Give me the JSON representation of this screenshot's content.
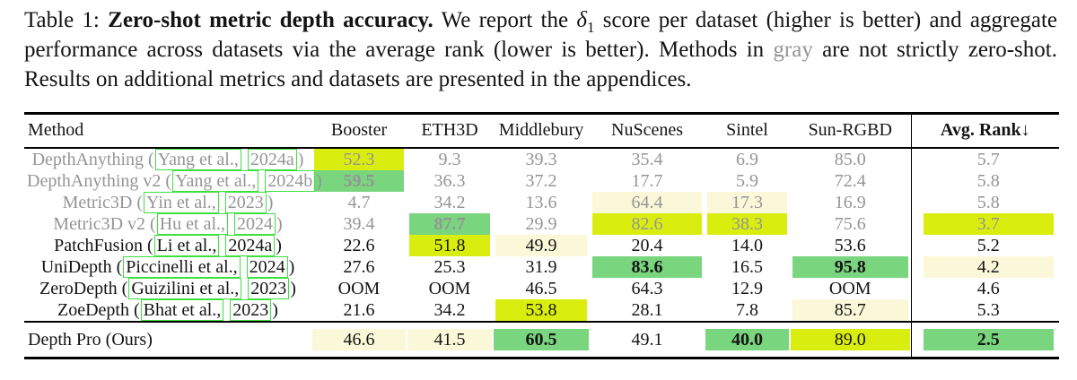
{
  "caption": {
    "prefix": "Table 1: ",
    "bold": "Zero-shot metric depth accuracy.",
    "after_bold": " We report the ",
    "delta": "δ",
    "delta_sub": "1",
    "mid": " score per dataset (higher is better) and aggregate performance across datasets via the average rank (lower is better). Methods in ",
    "gray_word": "gray",
    "tail": " are not strictly zero-shot. Results on additional metrics and datasets are presented in the appendices."
  },
  "colors": {
    "best": "#79d57e",
    "second": "#d9ee0f",
    "third": "#faf8d8",
    "link_box": "#3ee03e",
    "gray_text": "#959595"
  },
  "table": {
    "columns": [
      "Method",
      "Booster",
      "ETH3D",
      "Middlebury",
      "NuScenes",
      "Sintel",
      "Sun-RGBD",
      "Avg. Rank↓"
    ],
    "rows": [
      {
        "method": "DepthAnything",
        "cite_author": "Yang et al.,",
        "cite_year": "2024a",
        "gray": true,
        "cells": [
          {
            "v": "52.3",
            "hl": "second"
          },
          {
            "v": "9.3"
          },
          {
            "v": "39.3"
          },
          {
            "v": "35.4"
          },
          {
            "v": "6.9"
          },
          {
            "v": "85.0"
          },
          {
            "v": "5.7"
          }
        ]
      },
      {
        "method": "DepthAnything v2",
        "cite_author": "Yang et al.,",
        "cite_year": "2024b",
        "gray": true,
        "cells": [
          {
            "v": "59.5",
            "hl": "best",
            "b": true
          },
          {
            "v": "36.3"
          },
          {
            "v": "37.2"
          },
          {
            "v": "17.7"
          },
          {
            "v": "5.9"
          },
          {
            "v": "72.4"
          },
          {
            "v": "5.8"
          }
        ]
      },
      {
        "method": "Metric3D",
        "cite_author": "Yin et al.,",
        "cite_year": "2023",
        "gray": true,
        "cells": [
          {
            "v": "4.7"
          },
          {
            "v": "34.2"
          },
          {
            "v": "13.6"
          },
          {
            "v": "64.4",
            "hl": "third"
          },
          {
            "v": "17.3",
            "hl": "third"
          },
          {
            "v": "16.9"
          },
          {
            "v": "5.8"
          }
        ]
      },
      {
        "method": "Metric3D v2",
        "cite_author": "Hu et al.,",
        "cite_year": "2024",
        "gray": true,
        "cells": [
          {
            "v": "39.4"
          },
          {
            "v": "87.7",
            "hl": "best",
            "b": true
          },
          {
            "v": "29.9"
          },
          {
            "v": "82.6",
            "hl": "second"
          },
          {
            "v": "38.3",
            "hl": "second"
          },
          {
            "v": "75.6"
          },
          {
            "v": "3.7",
            "hl": "second"
          }
        ]
      },
      {
        "method": "PatchFusion",
        "cite_author": "Li et al.,",
        "cite_year": "2024a",
        "gray": false,
        "cells": [
          {
            "v": "22.6"
          },
          {
            "v": "51.8",
            "hl": "second"
          },
          {
            "v": "49.9",
            "hl": "third"
          },
          {
            "v": "20.4"
          },
          {
            "v": "14.0"
          },
          {
            "v": "53.6"
          },
          {
            "v": "5.2"
          }
        ]
      },
      {
        "method": "UniDepth",
        "cite_author": "Piccinelli et al.,",
        "cite_year": "2024",
        "gray": false,
        "cells": [
          {
            "v": "27.6"
          },
          {
            "v": "25.3"
          },
          {
            "v": "31.9"
          },
          {
            "v": "83.6",
            "hl": "best",
            "b": true
          },
          {
            "v": "16.5"
          },
          {
            "v": "95.8",
            "hl": "best",
            "b": true
          },
          {
            "v": "4.2",
            "hl": "third"
          }
        ]
      },
      {
        "method": "ZeroDepth",
        "cite_author": "Guizilini et al.,",
        "cite_year": "2023",
        "gray": false,
        "cells": [
          {
            "v": "OOM"
          },
          {
            "v": "OOM"
          },
          {
            "v": "46.5"
          },
          {
            "v": "64.3"
          },
          {
            "v": "12.9"
          },
          {
            "v": "OOM"
          },
          {
            "v": "4.6"
          }
        ]
      },
      {
        "method": "ZoeDepth",
        "cite_author": "Bhat et al.,",
        "cite_year": "2023",
        "gray": false,
        "cells": [
          {
            "v": "21.6"
          },
          {
            "v": "34.2"
          },
          {
            "v": "53.8",
            "hl": "second"
          },
          {
            "v": "28.1"
          },
          {
            "v": "7.8"
          },
          {
            "v": "85.7",
            "hl": "third"
          },
          {
            "v": "5.3"
          }
        ]
      }
    ],
    "final_row": {
      "method": "Depth Pro (Ours)",
      "gray": false,
      "cells": [
        {
          "v": "46.6",
          "hl": "third"
        },
        {
          "v": "41.5",
          "hl": "third"
        },
        {
          "v": "60.5",
          "hl": "best",
          "b": true
        },
        {
          "v": "49.1"
        },
        {
          "v": "40.0",
          "hl": "best",
          "b": true
        },
        {
          "v": "89.0",
          "hl": "second"
        },
        {
          "v": "2.5",
          "hl": "best",
          "b": true
        }
      ]
    }
  }
}
